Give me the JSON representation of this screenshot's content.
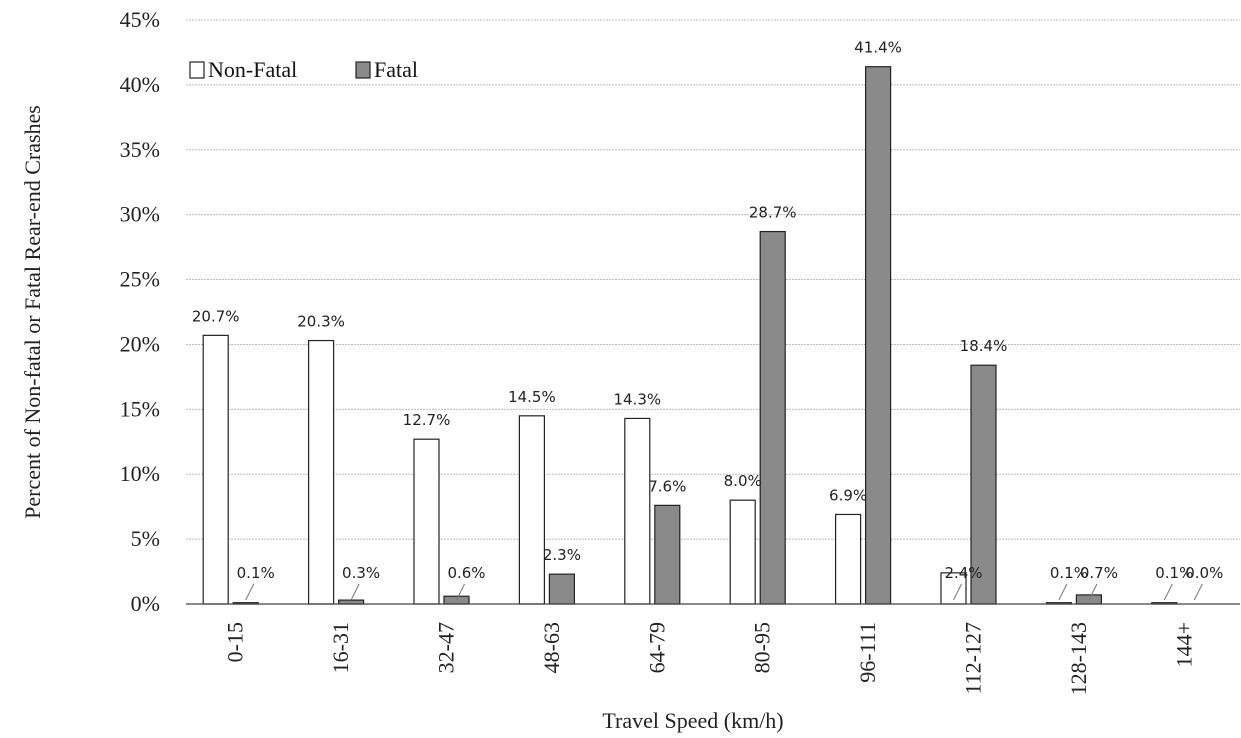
{
  "chart_data": {
    "type": "bar",
    "categories": [
      "0-15",
      "16-31",
      "32-47",
      "48-63",
      "64-79",
      "80-95",
      "96-111",
      "112-127",
      "128-143",
      "144+"
    ],
    "series": [
      {
        "name": "Non-Fatal",
        "values": [
          20.7,
          20.3,
          12.7,
          14.5,
          14.3,
          8.0,
          6.9,
          2.4,
          0.1,
          0.1
        ],
        "labels": [
          "20.7%",
          "20.3%",
          "12.7%",
          "14.5%",
          "14.3%",
          "8.0%",
          "6.9%",
          "2.4%",
          "0.1%",
          "0.1%"
        ],
        "color": "#ffffff"
      },
      {
        "name": "Fatal",
        "values": [
          0.1,
          0.3,
          0.6,
          2.3,
          7.6,
          28.7,
          41.4,
          18.4,
          0.7,
          0.0
        ],
        "labels": [
          "0.1%",
          "0.3%",
          "0.6%",
          "2.3%",
          "7.6%",
          "28.7%",
          "41.4%",
          "18.4%",
          "0.7%",
          "0.0%"
        ],
        "color": "#8a8a8a"
      }
    ],
    "title": "",
    "xlabel": "Travel Speed (km/h)",
    "ylabel": "Percent of Non-fatal or Fatal Rear-end Crashes",
    "ylim": [
      0,
      45
    ],
    "yticks": [
      "0%",
      "5%",
      "10%",
      "15%",
      "20%",
      "25%",
      "30%",
      "35%",
      "40%",
      "45%"
    ],
    "grid": true,
    "legend_position": "top-left"
  }
}
